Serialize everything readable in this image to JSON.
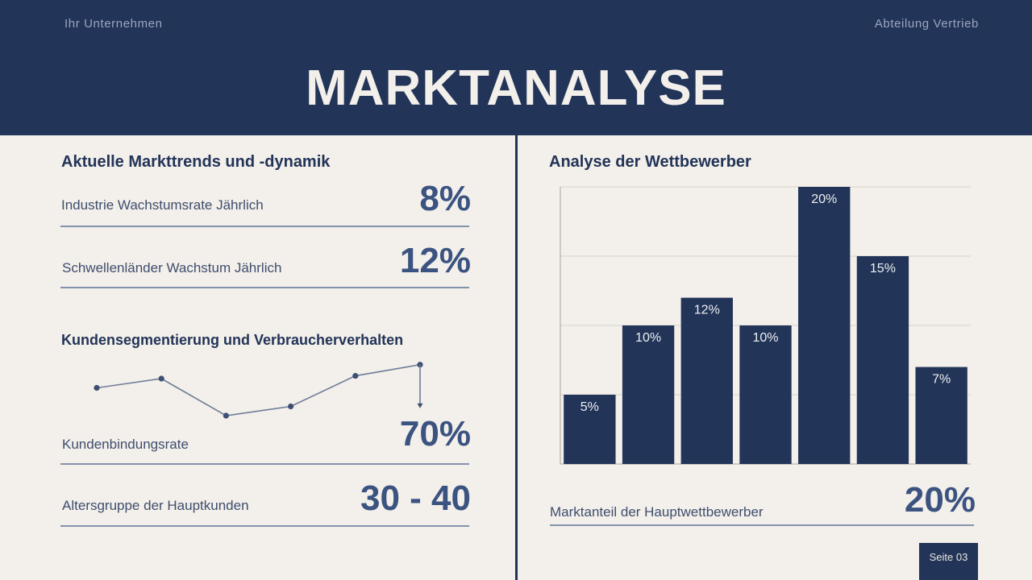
{
  "header": {
    "company": "Ihr Unternehmen",
    "department": "Abteilung Vertrieb",
    "title": "MARKTANALYSE"
  },
  "left": {
    "trends_heading": "Aktuelle Markttrends und -dynamik",
    "stat1": {
      "label": "Industrie Wachstumsrate Jährlich",
      "value": "8%"
    },
    "stat2": {
      "label": "Schwellenländer Wachstum Jährlich",
      "value": "12%"
    },
    "segment_heading": "Kundensegmentierung und Verbraucherverhalten",
    "stat3": {
      "label": "Kundenbindungsrate",
      "value": "70%"
    },
    "stat4": {
      "label": "Altersgruppe der Hauptkunden",
      "value": "30 - 40"
    }
  },
  "right": {
    "heading": "Analyse der Wettbewerber",
    "stat": {
      "label": "Marktanteil der Hauptwettbewerber",
      "value": "20%"
    }
  },
  "footer": {
    "page": "Seite 03"
  },
  "colors": {
    "navy": "#223458",
    "background": "#f3efea",
    "accent_text": "#3b5380",
    "line": "#6e7d99"
  },
  "chart_data": [
    {
      "type": "line",
      "title": "",
      "x": [
        1,
        2,
        3,
        4,
        5,
        6
      ],
      "values": [
        5,
        6,
        2,
        3,
        6.3,
        7.5
      ],
      "ylim": [
        0,
        10
      ],
      "grid": false,
      "legend": "none",
      "note": "decorative sparkline without axes; values are relative"
    },
    {
      "type": "bar",
      "title": "",
      "categories": [
        "",
        "",
        "",
        "",
        "",
        "",
        ""
      ],
      "values": [
        5,
        10,
        12,
        10,
        20,
        15,
        7
      ],
      "data_labels": [
        "5%",
        "10%",
        "12%",
        "10%",
        "20%",
        "15%",
        "7%"
      ],
      "xlabel": "",
      "ylabel": "",
      "ylim": [
        0,
        20
      ],
      "grid": true,
      "legend": "none"
    }
  ]
}
